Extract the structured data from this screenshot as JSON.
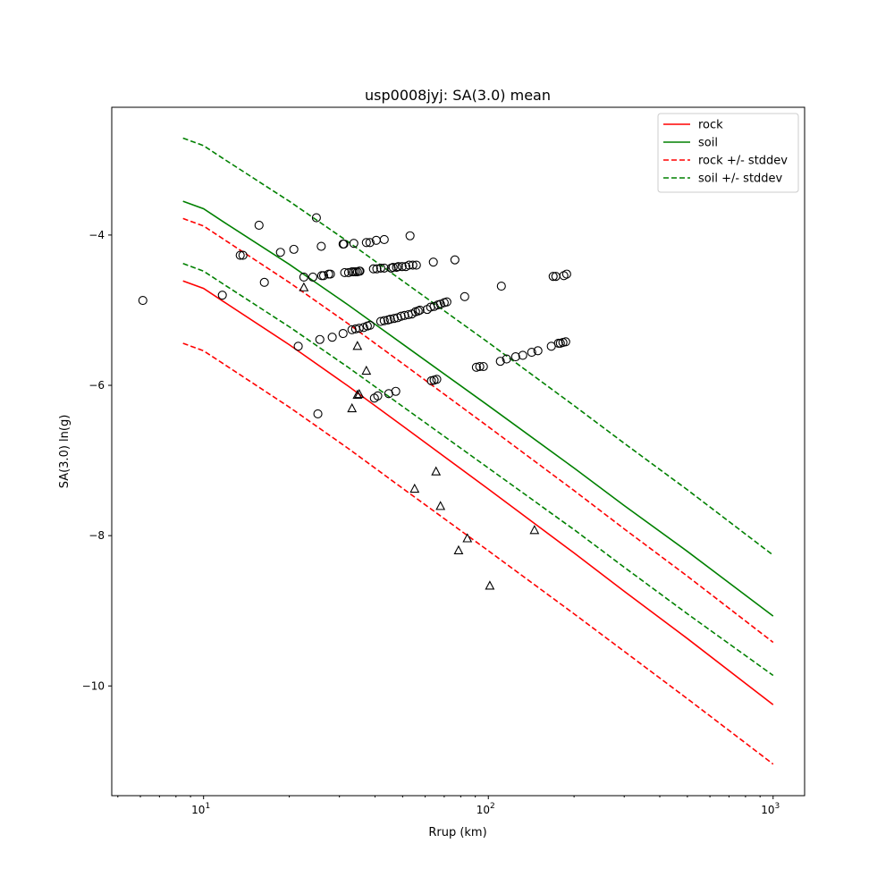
{
  "chart_data": {
    "type": "scatter",
    "title": "usp0008jyj: SA(3.0) mean",
    "xlabel": "Rrup (km)",
    "ylabel": "SA(3.0) ln(g)",
    "xscale": "log",
    "xlim": [
      4.76,
      1290
    ],
    "ylim": [
      -11.46,
      -2.3
    ],
    "xticks": [
      {
        "value": 10,
        "base": "10",
        "exp": "1"
      },
      {
        "value": 100,
        "base": "10",
        "exp": "2"
      },
      {
        "value": 1000,
        "base": "10",
        "exp": "3"
      }
    ],
    "yticks": [
      {
        "value": -4,
        "label": "−4"
      },
      {
        "value": -6,
        "label": "−6"
      },
      {
        "value": -8,
        "label": "−8"
      },
      {
        "value": -10,
        "label": "−10"
      }
    ],
    "grid": false,
    "legend_position": "top-right",
    "line_x": [
      8.47,
      10,
      11.7,
      20,
      32.2,
      50,
      100,
      200,
      300,
      500,
      1000
    ],
    "series": [
      {
        "name": "rock",
        "color": "#ff0000",
        "dashed": false,
        "legend": true,
        "values": [
          -4.61,
          -4.71,
          -4.88,
          -5.46,
          -6.01,
          -6.54,
          -7.38,
          -8.23,
          -8.74,
          -9.37,
          -10.25
        ]
      },
      {
        "name": "soil",
        "color": "#008000",
        "dashed": false,
        "legend": true,
        "values": [
          -3.55,
          -3.65,
          -3.82,
          -4.39,
          -4.93,
          -5.45,
          -6.27,
          -7.1,
          -7.6,
          -8.21,
          -9.07
        ]
      },
      {
        "name": "rock +/- stddev",
        "color": "#ff0000",
        "dashed": true,
        "legend": true,
        "values": [
          -3.78,
          -3.88,
          -4.05,
          -4.63,
          -5.18,
          -5.71,
          -6.55,
          -7.4,
          -7.91,
          -8.54,
          -9.42
        ]
      },
      {
        "name": "rock +/- stddev",
        "color": "#ff0000",
        "dashed": true,
        "legend": false,
        "values": [
          -5.44,
          -5.54,
          -5.71,
          -6.29,
          -6.84,
          -7.37,
          -8.2,
          -9.04,
          -9.54,
          -10.17,
          -11.04
        ]
      },
      {
        "name": "soil +/- stddev",
        "color": "#008000",
        "dashed": true,
        "legend": true,
        "values": [
          -2.71,
          -2.81,
          -2.98,
          -3.55,
          -4.09,
          -4.61,
          -5.43,
          -6.27,
          -6.77,
          -7.39,
          -8.26
        ]
      },
      {
        "name": "soil +/- stddev",
        "color": "#008000",
        "dashed": true,
        "legend": false,
        "values": [
          -4.38,
          -4.48,
          -4.65,
          -5.22,
          -5.76,
          -6.28,
          -7.1,
          -7.92,
          -8.42,
          -9.04,
          -9.86
        ]
      }
    ],
    "circles": [
      [
        6.12,
        -4.87
      ],
      [
        11.64,
        -4.8
      ],
      [
        13.45,
        -4.27
      ],
      [
        13.75,
        -4.27
      ],
      [
        15.66,
        -3.87
      ],
      [
        16.35,
        -4.63
      ],
      [
        18.62,
        -4.23
      ],
      [
        20.75,
        -4.19
      ],
      [
        21.5,
        -5.48
      ],
      [
        22.5,
        -4.56
      ],
      [
        24.2,
        -4.56
      ],
      [
        24.9,
        -3.77
      ],
      [
        25.6,
        -5.39
      ],
      [
        25.9,
        -4.15
      ],
      [
        26.0,
        -4.54
      ],
      [
        26.4,
        -4.54
      ],
      [
        27.5,
        -4.52
      ],
      [
        27.9,
        -4.52
      ],
      [
        28.3,
        -5.36
      ],
      [
        30.9,
        -4.12
      ],
      [
        31.1,
        -4.12
      ],
      [
        30.9,
        -5.31
      ],
      [
        31.3,
        -4.5
      ],
      [
        32.3,
        -4.5
      ],
      [
        33.2,
        -4.49
      ],
      [
        33.7,
        -4.11
      ],
      [
        33.7,
        -4.49
      ],
      [
        34.2,
        -4.49
      ],
      [
        34.7,
        -4.49
      ],
      [
        35.2,
        -4.48
      ],
      [
        35.4,
        -4.48
      ],
      [
        37.3,
        -4.1
      ],
      [
        38.4,
        -4.1
      ],
      [
        40.4,
        -4.07
      ],
      [
        43.1,
        -4.06
      ],
      [
        39.5,
        -4.45
      ],
      [
        40.6,
        -4.45
      ],
      [
        41.9,
        -4.44
      ],
      [
        43.1,
        -4.44
      ],
      [
        45.6,
        -4.44
      ],
      [
        46.3,
        -4.43
      ],
      [
        47.6,
        -4.43
      ],
      [
        48.3,
        -4.42
      ],
      [
        49.8,
        -4.42
      ],
      [
        51.3,
        -4.42
      ],
      [
        52.7,
        -4.4
      ],
      [
        54.3,
        -4.4
      ],
      [
        55.9,
        -4.4
      ],
      [
        53.1,
        -4.01
      ],
      [
        64.1,
        -4.36
      ],
      [
        76.3,
        -4.33
      ],
      [
        33.2,
        -5.26
      ],
      [
        34.2,
        -5.25
      ],
      [
        35.2,
        -5.24
      ],
      [
        36.5,
        -5.23
      ],
      [
        37.6,
        -5.21
      ],
      [
        38.4,
        -5.2
      ],
      [
        41.9,
        -5.15
      ],
      [
        43.1,
        -5.14
      ],
      [
        44.4,
        -5.13
      ],
      [
        45.3,
        -5.12
      ],
      [
        46.7,
        -5.11
      ],
      [
        48.0,
        -5.1
      ],
      [
        49.4,
        -5.08
      ],
      [
        50.8,
        -5.07
      ],
      [
        52.4,
        -5.06
      ],
      [
        53.9,
        -5.05
      ],
      [
        55.5,
        -5.02
      ],
      [
        56.7,
        -5.01
      ],
      [
        57.5,
        -5.0
      ],
      [
        61.0,
        -4.99
      ],
      [
        62.7,
        -4.96
      ],
      [
        64.5,
        -4.95
      ],
      [
        66.5,
        -4.93
      ],
      [
        67.9,
        -4.92
      ],
      [
        70.0,
        -4.9
      ],
      [
        71.5,
        -4.89
      ],
      [
        82.6,
        -4.82
      ],
      [
        111.1,
        -4.68
      ],
      [
        168.9,
        -4.55
      ],
      [
        172.6,
        -4.55
      ],
      [
        184.1,
        -4.54
      ],
      [
        188.4,
        -4.52
      ],
      [
        90.8,
        -5.76
      ],
      [
        93.3,
        -5.75
      ],
      [
        96.1,
        -5.75
      ],
      [
        110.2,
        -5.68
      ],
      [
        115.9,
        -5.65
      ],
      [
        124.7,
        -5.62
      ],
      [
        132.1,
        -5.6
      ],
      [
        142.0,
        -5.56
      ],
      [
        149.3,
        -5.54
      ],
      [
        166.4,
        -5.48
      ],
      [
        176.3,
        -5.44
      ],
      [
        179.0,
        -5.44
      ],
      [
        182.8,
        -5.43
      ],
      [
        186.9,
        -5.42
      ],
      [
        63.1,
        -5.94
      ],
      [
        64.5,
        -5.93
      ],
      [
        65.9,
        -5.92
      ],
      [
        39.8,
        -6.17
      ],
      [
        40.9,
        -6.14
      ],
      [
        44.7,
        -6.11
      ],
      [
        47.3,
        -6.08
      ],
      [
        25.2,
        -6.38
      ]
    ],
    "triangles": [
      [
        22.5,
        -4.7
      ],
      [
        34.7,
        -5.48
      ],
      [
        34.7,
        -6.13
      ],
      [
        35.2,
        -6.12
      ],
      [
        37.3,
        -5.81
      ],
      [
        33.2,
        -6.31
      ],
      [
        55.1,
        -7.38
      ],
      [
        65.5,
        -7.15
      ],
      [
        67.9,
        -7.61
      ],
      [
        78.6,
        -8.2
      ],
      [
        84.4,
        -8.04
      ],
      [
        101.2,
        -8.67
      ],
      [
        145.2,
        -7.93
      ]
    ]
  }
}
